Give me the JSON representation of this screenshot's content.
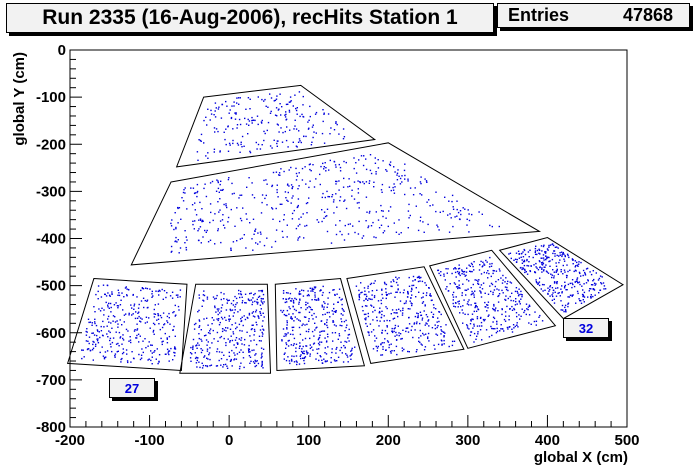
{
  "title": "Run 2335 (16-Aug-2006), recHits Station 1",
  "stats": {
    "label": "Entries",
    "value": "47868"
  },
  "chart_data": {
    "type": "scatter",
    "title": "Run 2335 (16-Aug-2006), recHits Station 1",
    "xlabel": "global X (cm)",
    "ylabel": "global Y (cm)",
    "xlim": [
      -200,
      500
    ],
    "ylim": [
      -800,
      0
    ],
    "x_ticks": [
      -200,
      -100,
      0,
      100,
      200,
      300,
      400,
      500
    ],
    "y_ticks": [
      0,
      -100,
      -200,
      -300,
      -400,
      -500,
      -600,
      -700,
      -800
    ],
    "entries": 47868,
    "marker_color": "#0000dd",
    "chambers": [
      {
        "ring": 3,
        "corners": [
          [
            -32,
            -100
          ],
          [
            90,
            -75
          ],
          [
            183,
            -190
          ],
          [
            -66,
            -248
          ]
        ],
        "density": 0.45
      },
      {
        "ring": 2,
        "corners": [
          [
            -73,
            -280
          ],
          [
            200,
            -197
          ],
          [
            390,
            -385
          ],
          [
            -123,
            -456
          ]
        ],
        "density": 1.0
      },
      {
        "ring": 1,
        "label": "27",
        "corners": [
          [
            -170,
            -485
          ],
          [
            -53,
            -497
          ],
          [
            -60,
            -680
          ],
          [
            -203,
            -665
          ]
        ],
        "density": 0.7
      },
      {
        "ring": 1,
        "corners": [
          [
            -42,
            -497
          ],
          [
            48,
            -497
          ],
          [
            52,
            -686
          ],
          [
            -62,
            -686
          ]
        ],
        "density": 0.7
      },
      {
        "ring": 1,
        "corners": [
          [
            58,
            -497
          ],
          [
            140,
            -485
          ],
          [
            170,
            -670
          ],
          [
            60,
            -680
          ]
        ],
        "density": 0.7
      },
      {
        "ring": 1,
        "corners": [
          [
            148,
            -485
          ],
          [
            245,
            -460
          ],
          [
            295,
            -635
          ],
          [
            178,
            -665
          ]
        ],
        "density": 0.7
      },
      {
        "ring": 1,
        "corners": [
          [
            252,
            -458
          ],
          [
            330,
            -425
          ],
          [
            410,
            -585
          ],
          [
            300,
            -633
          ]
        ],
        "density": 0.7
      },
      {
        "ring": 1,
        "label": "32",
        "corners": [
          [
            340,
            -425
          ],
          [
            400,
            -398
          ],
          [
            495,
            -498
          ],
          [
            420,
            -570
          ]
        ],
        "density": 0.7
      }
    ],
    "annotations": [
      {
        "text": "27",
        "x": -130,
        "y": -730
      },
      {
        "text": "32",
        "x": 455,
        "y": -603
      }
    ]
  }
}
